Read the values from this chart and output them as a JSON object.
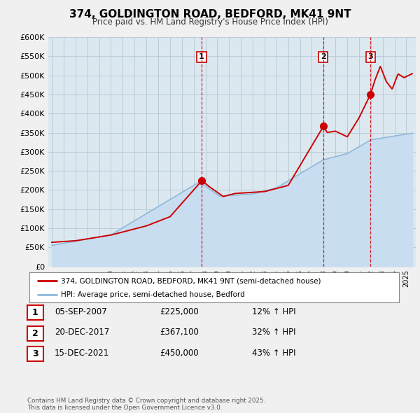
{
  "title": "374, GOLDINGTON ROAD, BEDFORD, MK41 9NT",
  "subtitle": "Price paid vs. HM Land Registry's House Price Index (HPI)",
  "ylim": [
    0,
    600000
  ],
  "yticks": [
    0,
    50000,
    100000,
    150000,
    200000,
    250000,
    300000,
    350000,
    400000,
    450000,
    500000,
    550000,
    600000
  ],
  "ytick_labels": [
    "£0",
    "£50K",
    "£100K",
    "£150K",
    "£200K",
    "£250K",
    "£300K",
    "£350K",
    "£400K",
    "£450K",
    "£500K",
    "£550K",
    "£600K"
  ],
  "red_line_color": "#cc0000",
  "blue_line_color": "#90b8d8",
  "blue_fill_color": "#c8ddf0",
  "sale_points": [
    {
      "year": 2007.67,
      "price": 225000,
      "label": "1"
    },
    {
      "year": 2017.97,
      "price": 367100,
      "label": "2"
    },
    {
      "year": 2021.96,
      "price": 450000,
      "label": "3"
    }
  ],
  "legend_entries": [
    {
      "label": "374, GOLDINGTON ROAD, BEDFORD, MK41 9NT (semi-detached house)",
      "color": "#cc0000"
    },
    {
      "label": "HPI: Average price, semi-detached house, Bedford",
      "color": "#90b8d8"
    }
  ],
  "table_rows": [
    {
      "num": "1",
      "date": "05-SEP-2007",
      "price": "£225,000",
      "hpi": "12% ↑ HPI"
    },
    {
      "num": "2",
      "date": "20-DEC-2017",
      "price": "£367,100",
      "hpi": "32% ↑ HPI"
    },
    {
      "num": "3",
      "date": "15-DEC-2021",
      "price": "£450,000",
      "hpi": "43% ↑ HPI"
    }
  ],
  "footnote": "Contains HM Land Registry data © Crown copyright and database right 2025.\nThis data is licensed under the Open Government Licence v3.0.",
  "bg_color": "#f0f0f0",
  "plot_bg_color": "#dce8f0",
  "grid_color": "#b8ccd8"
}
